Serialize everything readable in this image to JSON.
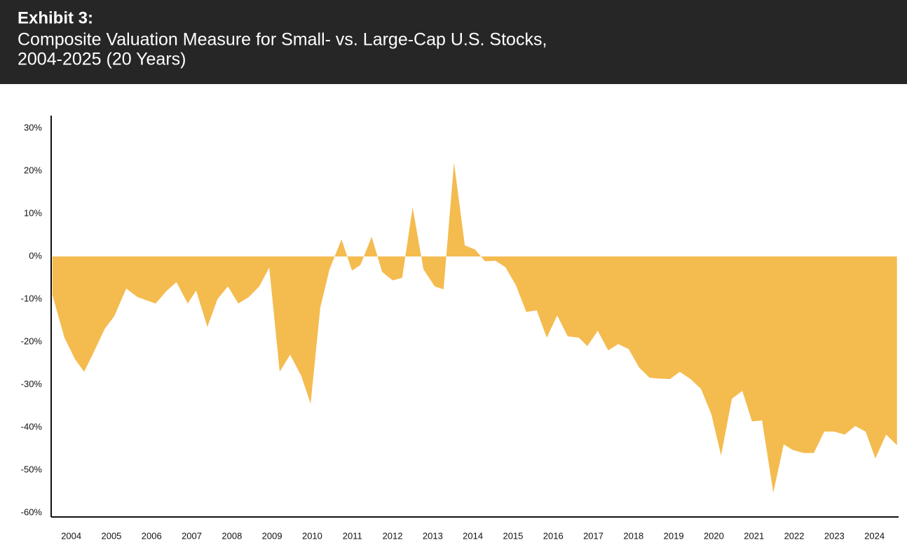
{
  "chart_data": {
    "type": "area",
    "title": "Exhibit 3:",
    "subtitle": [
      "Composite Valuation Measure for Small- vs. Large-Cap U.S. Stocks,",
      "2004-2025 (20 Years)"
    ],
    "x": [
      2004.03,
      2004.33,
      2004.59,
      2004.82,
      2005.03,
      2005.33,
      2005.57,
      2005.87,
      2006.15,
      2006.6,
      2006.88,
      2007.12,
      2007.4,
      2007.61,
      2007.89,
      2008.14,
      2008.4,
      2008.66,
      2008.92,
      2009.18,
      2009.43,
      2009.69,
      2009.95,
      2010.23,
      2010.46,
      2010.7,
      2010.93,
      2011.23,
      2011.49,
      2011.7,
      2011.98,
      2012.24,
      2012.5,
      2012.74,
      2013.0,
      2013.27,
      2013.55,
      2013.77,
      2014.03,
      2014.3,
      2014.56,
      2014.8,
      2015.06,
      2015.31,
      2015.57,
      2015.83,
      2016.09,
      2016.34,
      2016.6,
      2016.86,
      2017.14,
      2017.35,
      2017.61,
      2017.87,
      2018.12,
      2018.38,
      2018.64,
      2018.9,
      2019.15,
      2019.41,
      2019.65,
      2019.92,
      2020.18,
      2020.44,
      2020.68,
      2020.95,
      2021.21,
      2021.45,
      2021.7,
      2021.98,
      2022.24,
      2022.46,
      2022.73,
      2022.99,
      2023.25,
      2023.49,
      2023.76,
      2024.02,
      2024.28,
      2024.52,
      2024.79,
      2025.06
    ],
    "values": [
      -9,
      -19,
      -24,
      -27,
      -23,
      -17,
      -14,
      -7.5,
      -9.5,
      -11,
      -8,
      -6,
      -11,
      -8,
      -16.5,
      -10,
      -7,
      -11,
      -9.5,
      -7,
      -2.6,
      -27,
      -23,
      -28,
      -34.5,
      -12,
      -3,
      4,
      -3.3,
      -2,
      4.6,
      -3.6,
      -5.6,
      -5,
      11.5,
      -3,
      -7,
      -7.7,
      22,
      2.6,
      1.6,
      -1.1,
      -1,
      -2.5,
      -6.7,
      -13,
      -12.6,
      -19,
      -13.8,
      -18.7,
      -19,
      -21,
      -17.4,
      -22,
      -20.5,
      -21.7,
      -26,
      -28.4,
      -28.6,
      -28.7,
      -27,
      -28.7,
      -31,
      -37,
      -46.6,
      -33.3,
      -31.5,
      -38.6,
      -38.4,
      -55.3,
      -44,
      -45.3,
      -46,
      -46,
      -41,
      -41,
      -41.7,
      -39.7,
      -41,
      -47.3,
      -41.7,
      -44.2
    ],
    "color": "#f4bb4f",
    "xlim": [
      2004,
      2025.1
    ],
    "xticks": [
      2004,
      2005,
      2006,
      2007,
      2008,
      2009,
      2010,
      2011,
      2012,
      2013,
      2014,
      2015,
      2016,
      2017,
      2018,
      2019,
      2020,
      2021,
      2022,
      2023,
      2024
    ],
    "ylim": [
      -61,
      33
    ],
    "yticks": [
      {
        "value": 30,
        "label": "30%"
      },
      {
        "value": 20,
        "label": "20%"
      },
      {
        "value": 10,
        "label": "10%"
      },
      {
        "value": 0,
        "label": "0%"
      },
      {
        "value": -10,
        "label": "-10%"
      },
      {
        "value": -20,
        "label": "-20%"
      },
      {
        "value": -30,
        "label": "-30%"
      },
      {
        "value": -40,
        "label": "-40%"
      },
      {
        "value": -50,
        "label": "-50%"
      },
      {
        "value": -60,
        "label": "-60%"
      }
    ]
  }
}
